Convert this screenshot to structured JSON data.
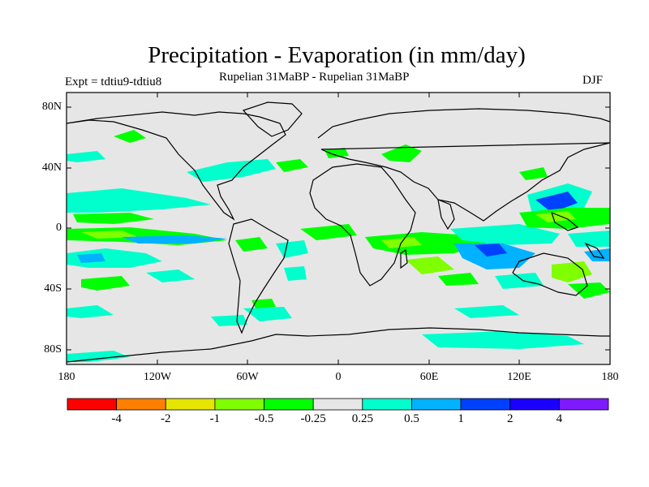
{
  "title": "Precipitation - Evaporation (in mm/day)",
  "subtitle": "Rupelian  31MaBP - Rupelian  31MaBP",
  "left_label": "Expt = tdtiu9-tdtiu8",
  "right_label": "DJF",
  "lat_labels": [
    "80N",
    "40N",
    "0",
    "40S",
    "80S"
  ],
  "lon_labels": [
    "180",
    "120W",
    "60W",
    "0",
    "60E",
    "120E",
    "180"
  ],
  "colorbar": {
    "colors": [
      "#ff0000",
      "#ff7f00",
      "#e5e500",
      "#7fff00",
      "#00ff00",
      "#e6e6e6",
      "#00ffcc",
      "#00b2ff",
      "#0040ff",
      "#1a00ff",
      "#7f1aff"
    ],
    "labels": [
      "-4",
      "-2",
      "-1",
      "-0.5",
      "-0.25",
      "0.25",
      "0.5",
      "1",
      "2",
      "4"
    ]
  },
  "colors": {
    "land_ocean_background": "#e6e6e6",
    "coastline": "#000000"
  }
}
